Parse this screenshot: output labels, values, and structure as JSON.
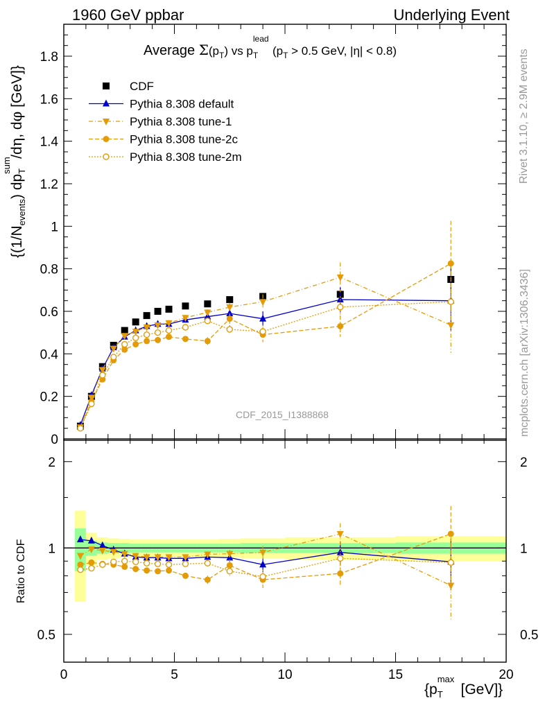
{
  "header": {
    "left": "1960 GeV ppbar",
    "right": "Underlying Event"
  },
  "side_labels": {
    "rivet": "Rivet 3.1.10, ≥ 2.9M events",
    "mcplots": "mcplots.cern.ch [arXiv:1306.3436]"
  },
  "colors": {
    "cdf": "#000000",
    "default": "#0000cc",
    "tunes": "#e39b07",
    "band_green": "#99ff99",
    "band_yellow": "#ffff99"
  },
  "chart_data": [
    {
      "type": "scatter",
      "title": "Average Σ(pT) vs pT lead (pT > 0.5 GeV, |η| < 0.8)",
      "title_parts": {
        "prefix": "Average",
        "sigma": "Σ",
        "p1": "(p",
        "sub_t": "T",
        "p2": ") vs p",
        "sup_lead": "lead",
        "p3": " (p",
        "p4": " > 0.5 GeV, |η| < 0.8)"
      },
      "ylabel": "{(1/N events) dpT sum/dη, dφ [GeV]}",
      "ylim": [
        0,
        1.95
      ],
      "xlim": [
        0,
        20
      ],
      "yticks": [
        "0",
        "0.2",
        "0.4",
        "0.6",
        "0.8",
        "1",
        "1.2",
        "1.4",
        "1.6",
        "1.8"
      ],
      "watermark": "CDF_2015_I1388868",
      "legend_position": "top-left",
      "x": [
        0.75,
        1.25,
        1.75,
        2.25,
        2.75,
        3.25,
        3.75,
        4.25,
        4.75,
        5.5,
        6.5,
        7.5,
        9.0,
        12.5,
        17.5
      ],
      "series": [
        {
          "name": "CDF",
          "style": "data",
          "values": [
            0.06,
            0.2,
            0.34,
            0.44,
            0.51,
            0.55,
            0.58,
            0.6,
            0.61,
            0.625,
            0.635,
            0.655,
            0.67,
            0.68,
            0.75
          ],
          "errors": [
            0.005,
            0.01,
            0.01,
            0.01,
            0.01,
            0.01,
            0.01,
            0.01,
            0.01,
            0.01,
            0.01,
            0.015,
            0.015,
            0.03,
            0.06
          ]
        },
        {
          "name": "Pythia 8.308 default",
          "style": "default",
          "values": [
            0.065,
            0.205,
            0.33,
            0.43,
            0.48,
            0.51,
            0.53,
            0.54,
            0.54,
            0.56,
            0.575,
            0.59,
            0.565,
            0.655,
            0.65
          ],
          "errors": [
            0.003,
            0.005,
            0.006,
            0.007,
            0.008,
            0.008,
            0.009,
            0.01,
            0.01,
            0.012,
            0.015,
            0.02,
            0.035,
            0.06,
            0.14
          ]
        },
        {
          "name": "Pythia 8.308 tune-1",
          "style": "tune1",
          "values": [
            0.055,
            0.195,
            0.325,
            0.425,
            0.485,
            0.505,
            0.525,
            0.535,
            0.545,
            0.57,
            0.595,
            0.62,
            0.645,
            0.76,
            0.535
          ],
          "errors": [
            0.003,
            0.005,
            0.006,
            0.007,
            0.008,
            0.008,
            0.009,
            0.01,
            0.01,
            0.012,
            0.015,
            0.02,
            0.035,
            0.07,
            0.13
          ]
        },
        {
          "name": "Pythia 8.308 tune-2c",
          "style": "tune2c",
          "values": [
            0.052,
            0.175,
            0.28,
            0.37,
            0.42,
            0.445,
            0.46,
            0.465,
            0.48,
            0.47,
            0.46,
            0.565,
            0.49,
            0.53,
            0.825
          ],
          "errors": [
            0.003,
            0.005,
            0.006,
            0.007,
            0.008,
            0.008,
            0.009,
            0.01,
            0.01,
            0.012,
            0.018,
            0.025,
            0.035,
            0.05,
            0.2
          ]
        },
        {
          "name": "Pythia 8.308 tune-2m",
          "style": "tune2m",
          "values": [
            0.05,
            0.165,
            0.3,
            0.385,
            0.445,
            0.475,
            0.49,
            0.5,
            0.51,
            0.525,
            0.555,
            0.515,
            0.505,
            0.62,
            0.645
          ],
          "errors": [
            0.003,
            0.005,
            0.006,
            0.007,
            0.008,
            0.008,
            0.009,
            0.01,
            0.01,
            0.012,
            0.015,
            0.02,
            0.03,
            0.05,
            0.14
          ]
        }
      ]
    },
    {
      "type": "scatter",
      "ylabel": "Ratio to CDF",
      "xlabel": "{pT max [GeV]}",
      "xlabel_parts": {
        "open": "{p",
        "sup": "max",
        "sub": "T",
        "close": " [GeV]}"
      },
      "xlim": [
        0,
        20
      ],
      "ylim": [
        0.4,
        2.4
      ],
      "yscale": "log",
      "xticks": [
        "0",
        "5",
        "10",
        "15",
        "20"
      ],
      "yticks": [
        "0.5",
        "1",
        "2"
      ],
      "x": [
        0.75,
        1.25,
        1.75,
        2.25,
        2.75,
        3.25,
        3.75,
        4.25,
        4.75,
        5.5,
        6.5,
        7.5,
        9.0,
        12.5,
        17.5
      ],
      "band_edges": [
        0.5,
        1.0,
        1.5,
        2.0,
        2.5,
        3.0,
        3.5,
        4.0,
        4.5,
        5.0,
        6.0,
        7.0,
        8.0,
        10.0,
        15.0,
        20.0
      ],
      "band_green": [
        0.17,
        0.06,
        0.045,
        0.04,
        0.04,
        0.035,
        0.035,
        0.035,
        0.035,
        0.035,
        0.035,
        0.035,
        0.04,
        0.04,
        0.045
      ],
      "band_yellow": [
        0.35,
        0.13,
        0.09,
        0.08,
        0.075,
        0.07,
        0.07,
        0.07,
        0.07,
        0.07,
        0.07,
        0.075,
        0.08,
        0.09,
        0.1
      ],
      "series": [
        {
          "name": "Pythia 8.308 default",
          "style": "default",
          "values": [
            1.07,
            1.06,
            1.02,
            0.985,
            0.955,
            0.93,
            0.925,
            0.925,
            0.92,
            0.92,
            0.93,
            0.925,
            0.875,
            0.965,
            0.895
          ],
          "errors": [
            0.01,
            0.01,
            0.01,
            0.01,
            0.01,
            0.01,
            0.012,
            0.012,
            0.012,
            0.015,
            0.02,
            0.03,
            0.05,
            0.09,
            0.18
          ]
        },
        {
          "name": "Pythia 8.308 tune-1",
          "style": "tune1",
          "values": [
            0.94,
            0.99,
            0.98,
            0.97,
            0.955,
            0.94,
            0.93,
            0.93,
            0.93,
            0.93,
            0.95,
            0.955,
            0.965,
            1.12,
            0.74
          ],
          "errors": [
            0.01,
            0.01,
            0.01,
            0.01,
            0.01,
            0.01,
            0.012,
            0.012,
            0.012,
            0.015,
            0.02,
            0.03,
            0.05,
            0.1,
            0.18
          ]
        },
        {
          "name": "Pythia 8.308 tune-2c",
          "style": "tune2c",
          "values": [
            0.875,
            0.89,
            0.88,
            0.875,
            0.86,
            0.845,
            0.835,
            0.83,
            0.835,
            0.8,
            0.775,
            0.87,
            0.775,
            0.815,
            1.12
          ],
          "errors": [
            0.01,
            0.01,
            0.01,
            0.01,
            0.01,
            0.01,
            0.012,
            0.012,
            0.012,
            0.015,
            0.025,
            0.04,
            0.05,
            0.08,
            0.28
          ]
        },
        {
          "name": "Pythia 8.308 tune-2m",
          "style": "tune2m",
          "values": [
            0.84,
            0.85,
            0.875,
            0.895,
            0.9,
            0.895,
            0.885,
            0.88,
            0.875,
            0.88,
            0.885,
            0.83,
            0.795,
            0.92,
            0.89
          ],
          "errors": [
            0.01,
            0.01,
            0.01,
            0.01,
            0.01,
            0.01,
            0.012,
            0.012,
            0.012,
            0.015,
            0.02,
            0.03,
            0.045,
            0.08,
            0.18
          ]
        }
      ]
    }
  ]
}
